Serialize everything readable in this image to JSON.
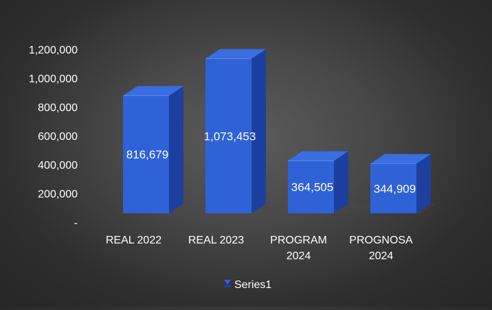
{
  "chart_data": {
    "type": "bar",
    "style": "3d-column",
    "categories": [
      "REAL 2022",
      "REAL 2023",
      "PROGRAM\n2024",
      "PROGNOSA\n2024"
    ],
    "series": [
      {
        "name": "Series1",
        "values": [
          816679,
          1073453,
          364505,
          344909
        ],
        "data_labels": [
          "816,679",
          "1,073,453",
          "364,505",
          "344,909"
        ],
        "color": "#2f62d6"
      }
    ],
    "y_ticks": [
      "-",
      "200,000",
      "400,000",
      "600,000",
      "800,000",
      "1,000,000",
      "1,200,000"
    ],
    "ylim": [
      0,
      1200000
    ],
    "title": "",
    "xlabel": "",
    "ylabel": "",
    "grid": false,
    "legend": {
      "position": "bottom",
      "entries": [
        "Series1"
      ]
    },
    "colors": {
      "bar_front": "#2f62d6",
      "bar_top": "#3a6ee0",
      "bar_side": "#1d40a0",
      "text": "#ffffff",
      "background": "#3f3f3f"
    }
  }
}
